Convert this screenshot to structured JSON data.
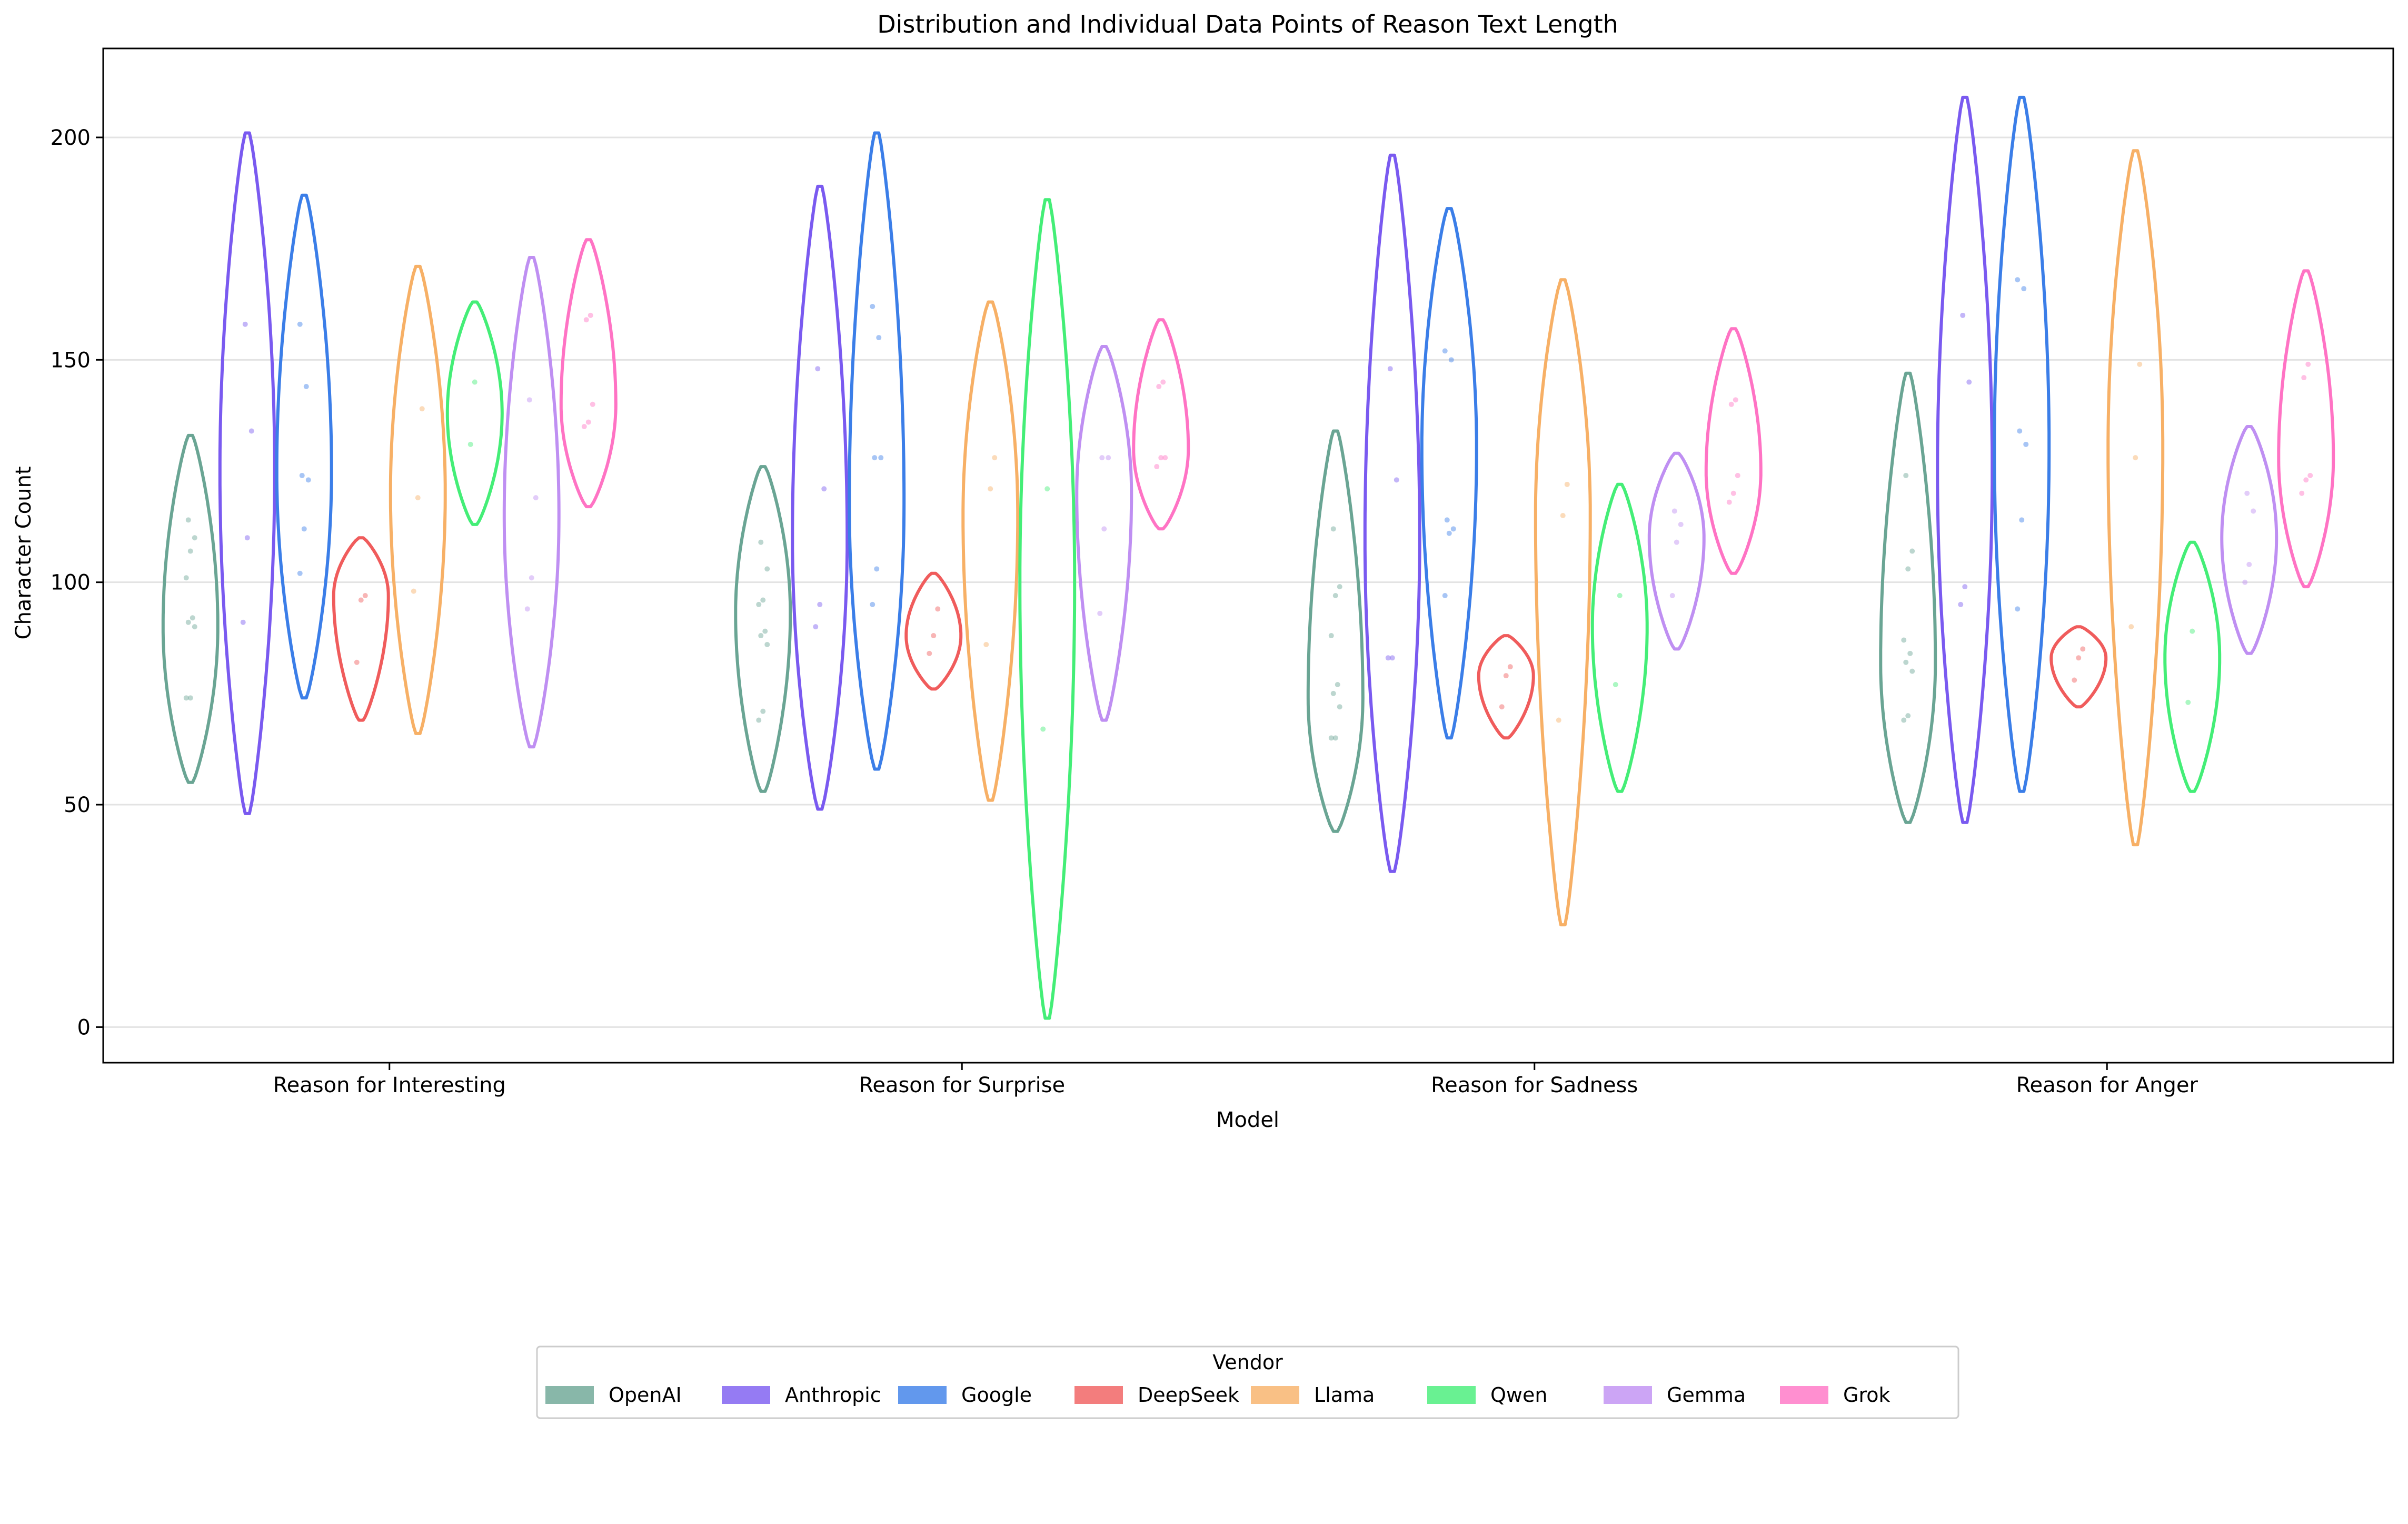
{
  "chart_data": {
    "type": "violin",
    "title": "Distribution and Individual Data Points of Reason Text Length",
    "xlabel": "Model",
    "ylabel": "Character Count",
    "ylim": [
      -8,
      220
    ],
    "yticks": [
      0,
      50,
      100,
      150,
      200
    ],
    "grid": "y",
    "categories": [
      "Reason for Interesting",
      "Reason for Surprise",
      "Reason for Sadness",
      "Reason for Anger"
    ],
    "legend": {
      "title": "Vendor",
      "placement": "bottom-center"
    },
    "series": [
      {
        "name": "OpenAI",
        "color": "#6aa594",
        "violins": [
          {
            "min": 55,
            "max": 133,
            "center": 90,
            "points": [
              74,
              74,
              90,
              91,
              92,
              101,
              107,
              110,
              114
            ]
          },
          {
            "min": 53,
            "max": 126,
            "center": 93,
            "points": [
              69,
              71,
              86,
              88,
              89,
              95,
              96,
              103,
              109
            ]
          },
          {
            "min": 44,
            "max": 134,
            "center": 74,
            "points": [
              65,
              65,
              72,
              75,
              77,
              88,
              97,
              99,
              112
            ]
          },
          {
            "min": 46,
            "max": 147,
            "center": 82,
            "points": [
              69,
              70,
              80,
              82,
              84,
              87,
              103,
              107,
              124
            ]
          }
        ]
      },
      {
        "name": "Anthropic",
        "color": "#7a5af0",
        "violins": [
          {
            "min": 48,
            "max": 201,
            "center": 125,
            "points": [
              91,
              110,
              134,
              158
            ]
          },
          {
            "min": 49,
            "max": 189,
            "center": 110,
            "points": [
              90,
              95,
              121,
              148
            ]
          },
          {
            "min": 35,
            "max": 196,
            "center": 110,
            "points": [
              83,
              83,
              123,
              148
            ]
          },
          {
            "min": 46,
            "max": 209,
            "center": 125,
            "points": [
              95,
              99,
              145,
              160
            ]
          }
        ]
      },
      {
        "name": "Google",
        "color": "#3b7ee8",
        "violins": [
          {
            "min": 74,
            "max": 187,
            "center": 125,
            "points": [
              102,
              112,
              123,
              124,
              144,
              158
            ]
          },
          {
            "min": 58,
            "max": 201,
            "center": 118,
            "points": [
              95,
              103,
              128,
              128,
              155,
              162
            ]
          },
          {
            "min": 65,
            "max": 184,
            "center": 130,
            "points": [
              97,
              111,
              112,
              114,
              150,
              152
            ]
          },
          {
            "min": 53,
            "max": 209,
            "center": 130,
            "points": [
              94,
              114,
              131,
              134,
              166,
              168
            ]
          }
        ]
      },
      {
        "name": "DeepSeek",
        "color": "#f05c5c",
        "violins": [
          {
            "min": 69,
            "max": 110,
            "center": 97,
            "points": [
              82,
              96,
              97
            ]
          },
          {
            "min": 76,
            "max": 102,
            "center": 88,
            "points": [
              84,
              88,
              94
            ]
          },
          {
            "min": 65,
            "max": 88,
            "center": 79,
            "points": [
              72,
              79,
              81
            ]
          },
          {
            "min": 72,
            "max": 90,
            "center": 83,
            "points": [
              78,
              83,
              85
            ]
          }
        ]
      },
      {
        "name": "Llama",
        "color": "#f7b066",
        "violins": [
          {
            "min": 66,
            "max": 171,
            "center": 120,
            "points": [
              98,
              119,
              139
            ]
          },
          {
            "min": 51,
            "max": 163,
            "center": 115,
            "points": [
              86,
              121,
              128
            ]
          },
          {
            "min": 23,
            "max": 168,
            "center": 115,
            "points": [
              69,
              115,
              122
            ]
          },
          {
            "min": 41,
            "max": 197,
            "center": 130,
            "points": [
              90,
              128,
              149
            ]
          }
        ]
      },
      {
        "name": "Qwen",
        "color": "#44ee77",
        "violins": [
          {
            "min": 113,
            "max": 163,
            "center": 138,
            "points": [
              131,
              145
            ]
          },
          {
            "min": 2,
            "max": 186,
            "center": 100,
            "points": [
              67,
              121
            ]
          },
          {
            "min": 53,
            "max": 122,
            "center": 90,
            "points": [
              77,
              97
            ]
          },
          {
            "min": 53,
            "max": 109,
            "center": 83,
            "points": [
              73,
              89
            ]
          }
        ]
      },
      {
        "name": "Gemma",
        "color": "#bf8ff2",
        "violins": [
          {
            "min": 63,
            "max": 173,
            "center": 115,
            "points": [
              94,
              101,
              119,
              141
            ]
          },
          {
            "min": 69,
            "max": 153,
            "center": 120,
            "points": [
              93,
              112,
              128,
              128
            ]
          },
          {
            "min": 85,
            "max": 129,
            "center": 110,
            "points": [
              97,
              109,
              113,
              116
            ]
          },
          {
            "min": 84,
            "max": 135,
            "center": 110,
            "points": [
              100,
              104,
              116,
              120
            ]
          }
        ]
      },
      {
        "name": "Grok",
        "color": "#ff73c4",
        "violins": [
          {
            "min": 117,
            "max": 177,
            "center": 140,
            "points": [
              135,
              136,
              140,
              159,
              160
            ]
          },
          {
            "min": 112,
            "max": 159,
            "center": 130,
            "points": [
              126,
              128,
              128,
              144,
              145
            ]
          },
          {
            "min": 102,
            "max": 157,
            "center": 125,
            "points": [
              118,
              120,
              124,
              140,
              141
            ]
          },
          {
            "min": 99,
            "max": 170,
            "center": 128,
            "points": [
              120,
              123,
              124,
              146,
              149
            ]
          }
        ]
      }
    ]
  }
}
